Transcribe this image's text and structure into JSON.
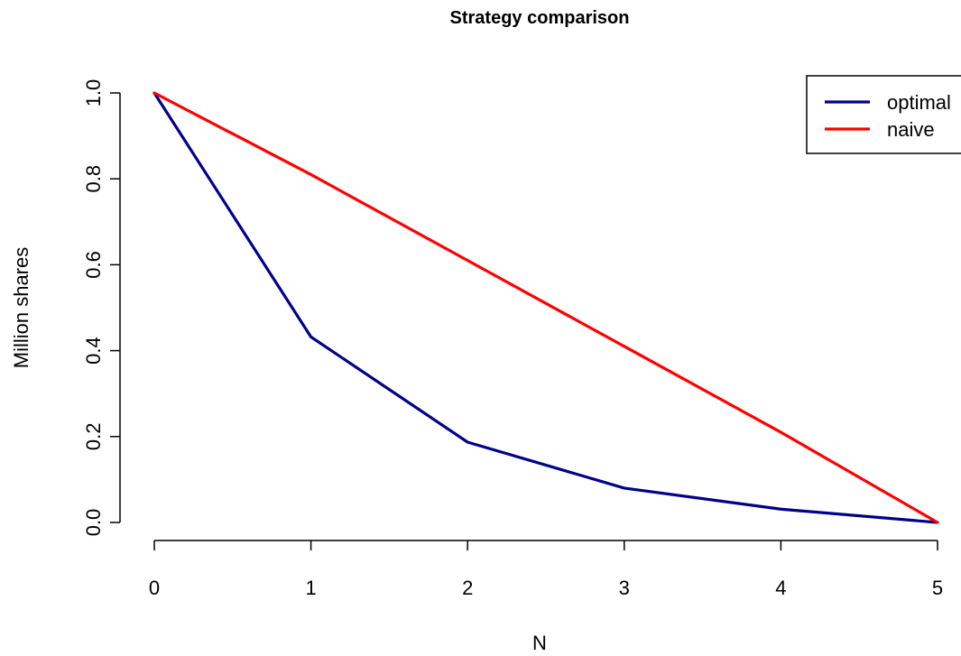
{
  "chart_data": {
    "type": "line",
    "title": "Strategy comparison",
    "xlabel": "N",
    "ylabel": "Million shares",
    "x": [
      0,
      1,
      2,
      3,
      4,
      5
    ],
    "xlim": [
      0,
      5
    ],
    "ylim": [
      0,
      1
    ],
    "x_ticks": [
      "0",
      "1",
      "2",
      "3",
      "4",
      "5"
    ],
    "y_ticks": [
      "0.0",
      "0.2",
      "0.4",
      "0.6",
      "0.8",
      "1.0"
    ],
    "y_tick_values": [
      0,
      0.2,
      0.4,
      0.6,
      0.8,
      1.0
    ],
    "grid": false,
    "legend_position": "top-right",
    "series": [
      {
        "name": "optimal",
        "color": "#00008B",
        "values": [
          1.0,
          0.432,
          0.187,
          0.08,
          0.031,
          0.0
        ]
      },
      {
        "name": "naive",
        "color": "#FF0000",
        "values": [
          1.0,
          0.81,
          0.61,
          0.41,
          0.21,
          0.0
        ]
      }
    ]
  }
}
